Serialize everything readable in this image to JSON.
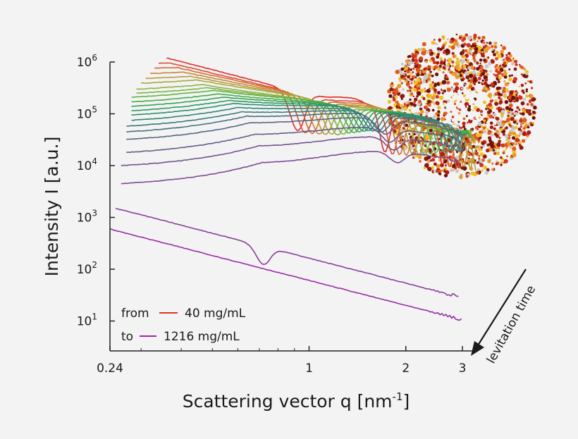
{
  "chart_data": {
    "type": "line",
    "title": "",
    "xlabel": "Scattering vector q [nm",
    "xlabel_sup": "-1",
    "xlabel_suffix": "]",
    "ylabel": "Intensity I [a.u.]",
    "xscale": "log",
    "yscale": "log",
    "xlim": [
      0.24,
      3
    ],
    "ylim": [
      3,
      1000000
    ],
    "x_ticks": [
      {
        "value": 0.24,
        "label": "0.24"
      },
      {
        "value": 1,
        "label": "1"
      },
      {
        "value": 2,
        "label": "2"
      },
      {
        "value": 3,
        "label": "3"
      }
    ],
    "y_ticks": [
      {
        "value": 10,
        "base": "10",
        "exp": "1"
      },
      {
        "value": 100,
        "base": "10",
        "exp": "2"
      },
      {
        "value": 1000,
        "base": "10",
        "exp": "3"
      },
      {
        "value": 10000,
        "base": "10",
        "exp": "4"
      },
      {
        "value": 100000,
        "base": "10",
        "exp": "5"
      },
      {
        "value": 1000000,
        "base": "10",
        "exp": "6"
      }
    ],
    "legend": {
      "position": "bottom-left",
      "entries": [
        {
          "prefix": "from",
          "label": "40 mg/mL",
          "color": "#e0342a"
        },
        {
          "prefix": "to",
          "label": "1216 mg/mL",
          "color": "#9b2aa8"
        }
      ]
    },
    "annotation": {
      "text": "levitation time",
      "direction": "arrow pointing down-left along the curves"
    },
    "inset": {
      "description": "protein structure image, top-right"
    },
    "series_model": {
      "count": 22,
      "note": "Each series is a concentration step from 40 mg/mL (top, red) to 1216 mg/mL (bottom, purple). Curves share the same oscillation shape with decreasing amplitude and an upward peak shift toward higher q.",
      "first_q": [
        0.36,
        0.34,
        0.33,
        0.32,
        0.31,
        0.3,
        0.29,
        0.29,
        0.28,
        0.28,
        0.28,
        0.28,
        0.28,
        0.28,
        0.27,
        0.27,
        0.27,
        0.27,
        0.26,
        0.26,
        0.25,
        0.24
      ],
      "last_q": [
        3.4,
        3.38,
        3.36,
        3.34,
        3.32,
        3.3,
        3.28,
        3.26,
        3.24,
        3.2,
        3.16,
        3.12,
        3.08,
        3.06,
        3.04,
        3.02,
        3.0,
        2.98,
        2.96,
        2.94,
        2.92,
        2.98
      ],
      "plateau_intensity": [
        1200000,
        950000,
        760000,
        600000,
        480000,
        390000,
        300000,
        250000,
        210000,
        170000,
        140000,
        115000,
        95000,
        75000,
        58000,
        45000,
        32000,
        18000,
        10000,
        4500,
        1500,
        750
      ]
    },
    "series_colors": [
      "#e02a27",
      "#dc4b2c",
      "#d26a31",
      "#c48736",
      "#b79b3a",
      "#a5a93d",
      "#8fb23f",
      "#78b642",
      "#5fb445",
      "#46ad4a",
      "#36a356",
      "#2c9a62",
      "#2a906c",
      "#2d8574",
      "#3a7a7b",
      "#4a6f80",
      "#576683",
      "#635d87",
      "#70548c",
      "#7c4a93",
      "#8b3d9d",
      "#9b2aa8"
    ]
  }
}
